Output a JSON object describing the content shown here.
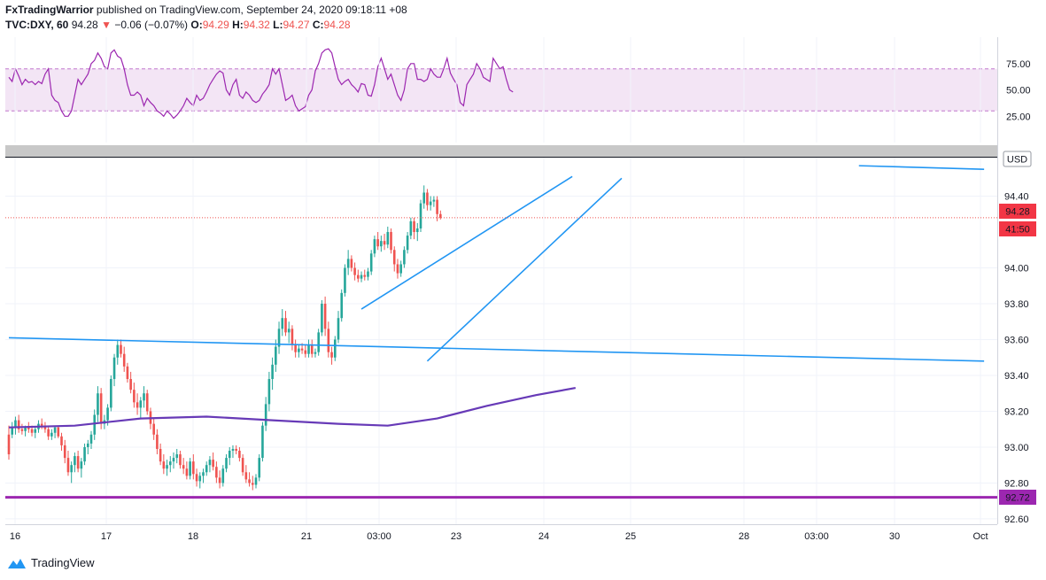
{
  "header": {
    "author": "FxTradingWarrior",
    "published_text": " published on TradingView.com, September 24, 2020 09:18:11 +08",
    "symbol": "TVC:DXY, 60",
    "last": "94.28",
    "change": "−0.06 (−0.07%)",
    "o_label": "O:",
    "o_value": "94.29",
    "h_label": "H:",
    "h_value": "94.32",
    "l_label": "L:",
    "l_value": "94.27",
    "c_label": "C:",
    "c_value": "94.28"
  },
  "price_axis": {
    "ticks": [
      "94.40",
      "94.00",
      "93.80",
      "93.60",
      "93.40",
      "93.20",
      "93.00",
      "92.80",
      "92.60"
    ],
    "currency_label": "USD",
    "last_price_badge": "94.28",
    "countdown_badge": "41:50",
    "support_badge": "92.72"
  },
  "rsi_axis": {
    "ticks": [
      "75.00",
      "50.00",
      "25.00"
    ]
  },
  "time_axis": {
    "ticks": [
      "16",
      "17",
      "18",
      "21",
      "03:00",
      "23",
      "24",
      "25",
      "28",
      "03:00",
      "30",
      "Oct"
    ]
  },
  "footer": {
    "brand": "TradingView"
  },
  "colors": {
    "up": "#26a69a",
    "down": "#ef5350",
    "trendline": "#2196f3",
    "moving_average": "#673ab7",
    "support": "#9c27b0",
    "rsi": "#9c27b0",
    "rsi_band": "#f3e5f5",
    "badge_red": "#f23645",
    "badge_purple": "#9c27b0"
  },
  "icons": {
    "logo": "tradingview-logo-icon",
    "down_arrow": "triangle-down-icon"
  },
  "chart_data": [
    {
      "type": "line",
      "panel": "RSI",
      "ylim": [
        0,
        100
      ],
      "bands": [
        30,
        70
      ],
      "values": [
        62,
        58,
        70,
        63,
        55,
        60,
        57,
        58,
        55,
        58,
        56,
        65,
        70,
        45,
        40,
        38,
        30,
        25,
        25,
        30,
        45,
        60,
        55,
        60,
        65,
        75,
        78,
        85,
        80,
        72,
        70,
        85,
        88,
        82,
        80,
        70,
        55,
        45,
        45,
        48,
        45,
        35,
        42,
        38,
        35,
        30,
        28,
        25,
        30,
        27,
        23,
        26,
        30,
        35,
        42,
        38,
        35,
        45,
        40,
        42,
        48,
        55,
        60,
        65,
        68,
        66,
        50,
        45,
        55,
        60,
        45,
        42,
        48,
        45,
        40,
        38,
        40,
        46,
        50,
        55,
        70,
        65,
        70,
        55,
        40,
        42,
        45,
        35,
        30,
        32,
        34,
        45,
        50,
        68,
        75,
        85,
        88,
        89,
        85,
        72,
        60,
        55,
        58,
        60,
        55,
        52,
        48,
        56,
        55,
        45,
        44,
        55,
        72,
        80,
        70,
        60,
        65,
        55,
        45,
        40,
        50,
        70,
        75,
        75,
        60,
        60,
        58,
        60,
        70,
        65,
        62,
        62,
        70,
        80,
        66,
        60,
        55,
        38,
        35,
        55,
        60,
        65,
        75,
        70,
        62,
        60,
        58,
        80,
        75,
        70,
        72,
        60,
        50,
        48
      ]
    },
    {
      "type": "candlestick",
      "panel": "price",
      "ylim": [
        92.57,
        94.62
      ],
      "moving_average": [
        {
          "bar": 0,
          "value": 93.11
        },
        {
          "bar": 20,
          "value": 93.12
        },
        {
          "bar": 40,
          "value": 93.16
        },
        {
          "bar": 60,
          "value": 93.17
        },
        {
          "bar": 80,
          "value": 93.15
        },
        {
          "bar": 100,
          "value": 93.13
        },
        {
          "bar": 115,
          "value": 93.12
        },
        {
          "bar": 130,
          "value": 93.16
        },
        {
          "bar": 145,
          "value": 93.23
        },
        {
          "bar": 160,
          "value": 93.29
        },
        {
          "bar": 172,
          "value": 93.33
        }
      ],
      "trendlines": [
        {
          "x1": 0,
          "y1": 93.61,
          "x2": 296,
          "y2": 93.48
        },
        {
          "x1": 258,
          "y1": 94.57,
          "x2": 296,
          "y2": 94.55
        },
        {
          "x1": 107,
          "y1": 93.77,
          "x2": 171,
          "y2": 94.51
        },
        {
          "x1": 127,
          "y1": 93.48,
          "x2": 186,
          "y2": 94.5
        }
      ],
      "support_level": 92.72,
      "price_line": 94.28,
      "ohlc": [
        [
          93.07,
          93.12,
          92.93,
          92.96
        ],
        [
          93.07,
          93.14,
          93.05,
          93.11
        ],
        [
          93.11,
          93.17,
          93.07,
          93.15
        ],
        [
          93.15,
          93.18,
          93.08,
          93.1
        ],
        [
          93.1,
          93.13,
          93.07,
          93.09
        ],
        [
          93.09,
          93.12,
          93.06,
          93.11
        ],
        [
          93.11,
          93.14,
          93.08,
          93.1
        ],
        [
          93.1,
          93.12,
          93.06,
          93.08
        ],
        [
          93.08,
          93.11,
          93.05,
          93.1
        ],
        [
          93.1,
          93.15,
          93.08,
          93.13
        ],
        [
          93.13,
          93.16,
          93.1,
          93.12
        ],
        [
          93.12,
          93.14,
          93.08,
          93.1
        ],
        [
          93.1,
          93.12,
          93.04,
          93.06
        ],
        [
          93.06,
          93.1,
          93.04,
          93.08
        ],
        [
          93.08,
          93.12,
          93.05,
          93.11
        ],
        [
          93.11,
          93.12,
          93.05,
          93.06
        ],
        [
          93.06,
          93.08,
          92.98,
          93.01
        ],
        [
          93.01,
          93.04,
          92.91,
          92.94
        ],
        [
          92.94,
          92.98,
          92.84,
          92.86
        ],
        [
          92.86,
          92.92,
          92.8,
          92.9
        ],
        [
          92.9,
          92.97,
          92.86,
          92.95
        ],
        [
          92.95,
          92.98,
          92.86,
          92.88
        ],
        [
          92.88,
          92.94,
          92.83,
          92.92
        ],
        [
          92.92,
          93.02,
          92.9,
          93.0
        ],
        [
          93.0,
          93.04,
          92.96,
          93.02
        ],
        [
          93.02,
          93.09,
          92.99,
          93.07
        ],
        [
          93.07,
          93.21,
          93.04,
          93.18
        ],
        [
          93.18,
          93.34,
          93.14,
          93.3
        ],
        [
          93.3,
          93.33,
          93.1,
          93.13
        ],
        [
          93.13,
          93.18,
          93.1,
          93.15
        ],
        [
          93.15,
          93.24,
          93.12,
          93.22
        ],
        [
          93.22,
          93.4,
          93.2,
          93.38
        ],
        [
          93.38,
          93.52,
          93.34,
          93.5
        ],
        [
          93.5,
          93.6,
          93.46,
          93.57
        ],
        [
          93.57,
          93.6,
          93.5,
          93.52
        ],
        [
          93.52,
          93.56,
          93.42,
          93.45
        ],
        [
          93.45,
          93.47,
          93.36,
          93.38
        ],
        [
          93.38,
          93.42,
          93.3,
          93.32
        ],
        [
          93.32,
          93.36,
          93.22,
          93.25
        ],
        [
          93.25,
          93.3,
          93.18,
          93.22
        ],
        [
          93.22,
          93.28,
          93.16,
          93.26
        ],
        [
          93.26,
          93.34,
          93.22,
          93.3
        ],
        [
          93.3,
          93.32,
          93.18,
          93.2
        ],
        [
          93.2,
          93.22,
          93.1,
          93.13
        ],
        [
          93.13,
          93.16,
          93.04,
          93.07
        ],
        [
          93.07,
          93.1,
          92.96,
          92.99
        ],
        [
          92.99,
          93.02,
          92.9,
          92.92
        ],
        [
          92.92,
          92.96,
          92.85,
          92.88
        ],
        [
          92.88,
          92.93,
          92.84,
          92.9
        ],
        [
          92.9,
          92.95,
          92.86,
          92.92
        ],
        [
          92.92,
          92.97,
          92.88,
          92.94
        ],
        [
          92.94,
          92.99,
          92.91,
          92.96
        ],
        [
          92.96,
          92.98,
          92.88,
          92.9
        ],
        [
          92.9,
          92.94,
          92.85,
          92.88
        ],
        [
          92.88,
          92.92,
          92.82,
          92.84
        ],
        [
          92.84,
          92.94,
          92.82,
          92.92
        ],
        [
          92.92,
          92.96,
          92.82,
          92.85
        ],
        [
          92.85,
          92.88,
          92.78,
          92.81
        ],
        [
          92.81,
          92.86,
          92.77,
          92.84
        ],
        [
          92.84,
          92.88,
          92.8,
          92.86
        ],
        [
          92.86,
          92.92,
          92.84,
          92.9
        ],
        [
          92.9,
          92.95,
          92.86,
          92.93
        ],
        [
          92.93,
          92.97,
          92.87,
          92.89
        ],
        [
          92.89,
          92.92,
          92.8,
          92.83
        ],
        [
          92.83,
          92.87,
          92.77,
          92.8
        ],
        [
          92.8,
          92.9,
          92.78,
          92.88
        ],
        [
          92.88,
          92.96,
          92.86,
          92.94
        ],
        [
          92.94,
          93.0,
          92.9,
          92.98
        ],
        [
          92.98,
          93.01,
          92.94,
          92.99
        ],
        [
          92.99,
          93.01,
          92.96,
          92.98
        ],
        [
          92.98,
          93.0,
          92.92,
          92.94
        ],
        [
          92.94,
          92.96,
          92.84,
          92.86
        ],
        [
          92.86,
          92.9,
          92.8,
          92.82
        ],
        [
          92.82,
          92.86,
          92.78,
          92.8
        ],
        [
          92.8,
          92.84,
          92.76,
          92.79
        ],
        [
          92.79,
          92.85,
          92.77,
          92.83
        ],
        [
          92.83,
          92.96,
          92.81,
          92.94
        ],
        [
          92.94,
          93.14,
          92.92,
          93.12
        ],
        [
          93.12,
          93.28,
          93.09,
          93.24
        ],
        [
          93.24,
          93.42,
          93.2,
          93.38
        ],
        [
          93.38,
          93.5,
          93.32,
          93.46
        ],
        [
          93.46,
          93.6,
          93.42,
          93.56
        ],
        [
          93.56,
          93.7,
          93.52,
          93.66
        ],
        [
          93.66,
          93.77,
          93.62,
          93.72
        ],
        [
          93.72,
          93.76,
          93.62,
          93.64
        ],
        [
          93.64,
          93.7,
          93.58,
          93.66
        ],
        [
          93.66,
          93.68,
          93.54,
          93.57
        ],
        [
          93.57,
          93.6,
          93.5,
          93.53
        ],
        [
          93.53,
          93.57,
          93.5,
          93.55
        ],
        [
          93.55,
          93.58,
          93.52,
          93.54
        ],
        [
          93.54,
          93.57,
          93.5,
          93.52
        ],
        [
          93.52,
          93.6,
          93.5,
          93.57
        ],
        [
          93.57,
          93.6,
          93.5,
          93.52
        ],
        [
          93.52,
          93.55,
          93.5,
          93.53
        ],
        [
          93.53,
          93.66,
          93.51,
          93.64
        ],
        [
          93.64,
          93.82,
          93.62,
          93.8
        ],
        [
          93.8,
          93.84,
          93.62,
          93.66
        ],
        [
          93.66,
          93.7,
          93.5,
          93.53
        ],
        [
          93.53,
          93.56,
          93.46,
          93.5
        ],
        [
          93.5,
          93.62,
          93.48,
          93.6
        ],
        [
          93.6,
          93.76,
          93.58,
          93.72
        ],
        [
          93.72,
          93.88,
          93.7,
          93.86
        ],
        [
          93.86,
          94.02,
          93.84,
          94.0
        ],
        [
          94.0,
          94.1,
          93.96,
          94.05
        ],
        [
          94.05,
          94.07,
          93.98,
          94.0
        ],
        [
          94.0,
          94.03,
          93.93,
          93.96
        ],
        [
          93.96,
          93.99,
          93.92,
          93.94
        ],
        [
          93.94,
          93.98,
          93.92,
          93.96
        ],
        [
          93.96,
          93.99,
          93.93,
          93.95
        ],
        [
          93.95,
          94.0,
          93.93,
          93.98
        ],
        [
          93.98,
          94.1,
          93.96,
          94.08
        ],
        [
          94.08,
          94.18,
          94.06,
          94.16
        ],
        [
          94.16,
          94.2,
          94.1,
          94.12
        ],
        [
          94.12,
          94.18,
          94.09,
          94.15
        ],
        [
          94.15,
          94.19,
          94.1,
          94.13
        ],
        [
          94.13,
          94.23,
          94.11,
          94.2
        ],
        [
          94.2,
          94.22,
          94.08,
          94.1
        ],
        [
          94.1,
          94.12,
          93.98,
          94.02
        ],
        [
          94.02,
          94.05,
          93.94,
          93.97
        ],
        [
          93.97,
          94.04,
          93.95,
          94.02
        ],
        [
          94.02,
          94.12,
          94.0,
          94.1
        ],
        [
          94.1,
          94.2,
          94.08,
          94.18
        ],
        [
          94.18,
          94.28,
          94.16,
          94.26
        ],
        [
          94.26,
          94.28,
          94.16,
          94.2
        ],
        [
          94.2,
          94.25,
          94.15,
          94.22
        ],
        [
          94.22,
          94.38,
          94.2,
          94.36
        ],
        [
          94.36,
          94.46,
          94.33,
          94.42
        ],
        [
          94.42,
          94.44,
          94.32,
          94.35
        ],
        [
          94.35,
          94.4,
          94.32,
          94.37
        ],
        [
          94.37,
          94.4,
          94.34,
          94.38
        ],
        [
          94.38,
          94.4,
          94.26,
          94.3
        ],
        [
          94.3,
          94.32,
          94.27,
          94.28
        ]
      ],
      "x_ticks": [
        "16",
        "17",
        "18",
        "21",
        "03:00",
        "23",
        "24",
        "25",
        "28",
        "03:00",
        "30",
        "Oct"
      ],
      "y_ticks": [
        "94.40",
        "94.00",
        "93.80",
        "93.60",
        "93.40",
        "93.20",
        "93.00",
        "92.80",
        "92.60"
      ]
    }
  ]
}
